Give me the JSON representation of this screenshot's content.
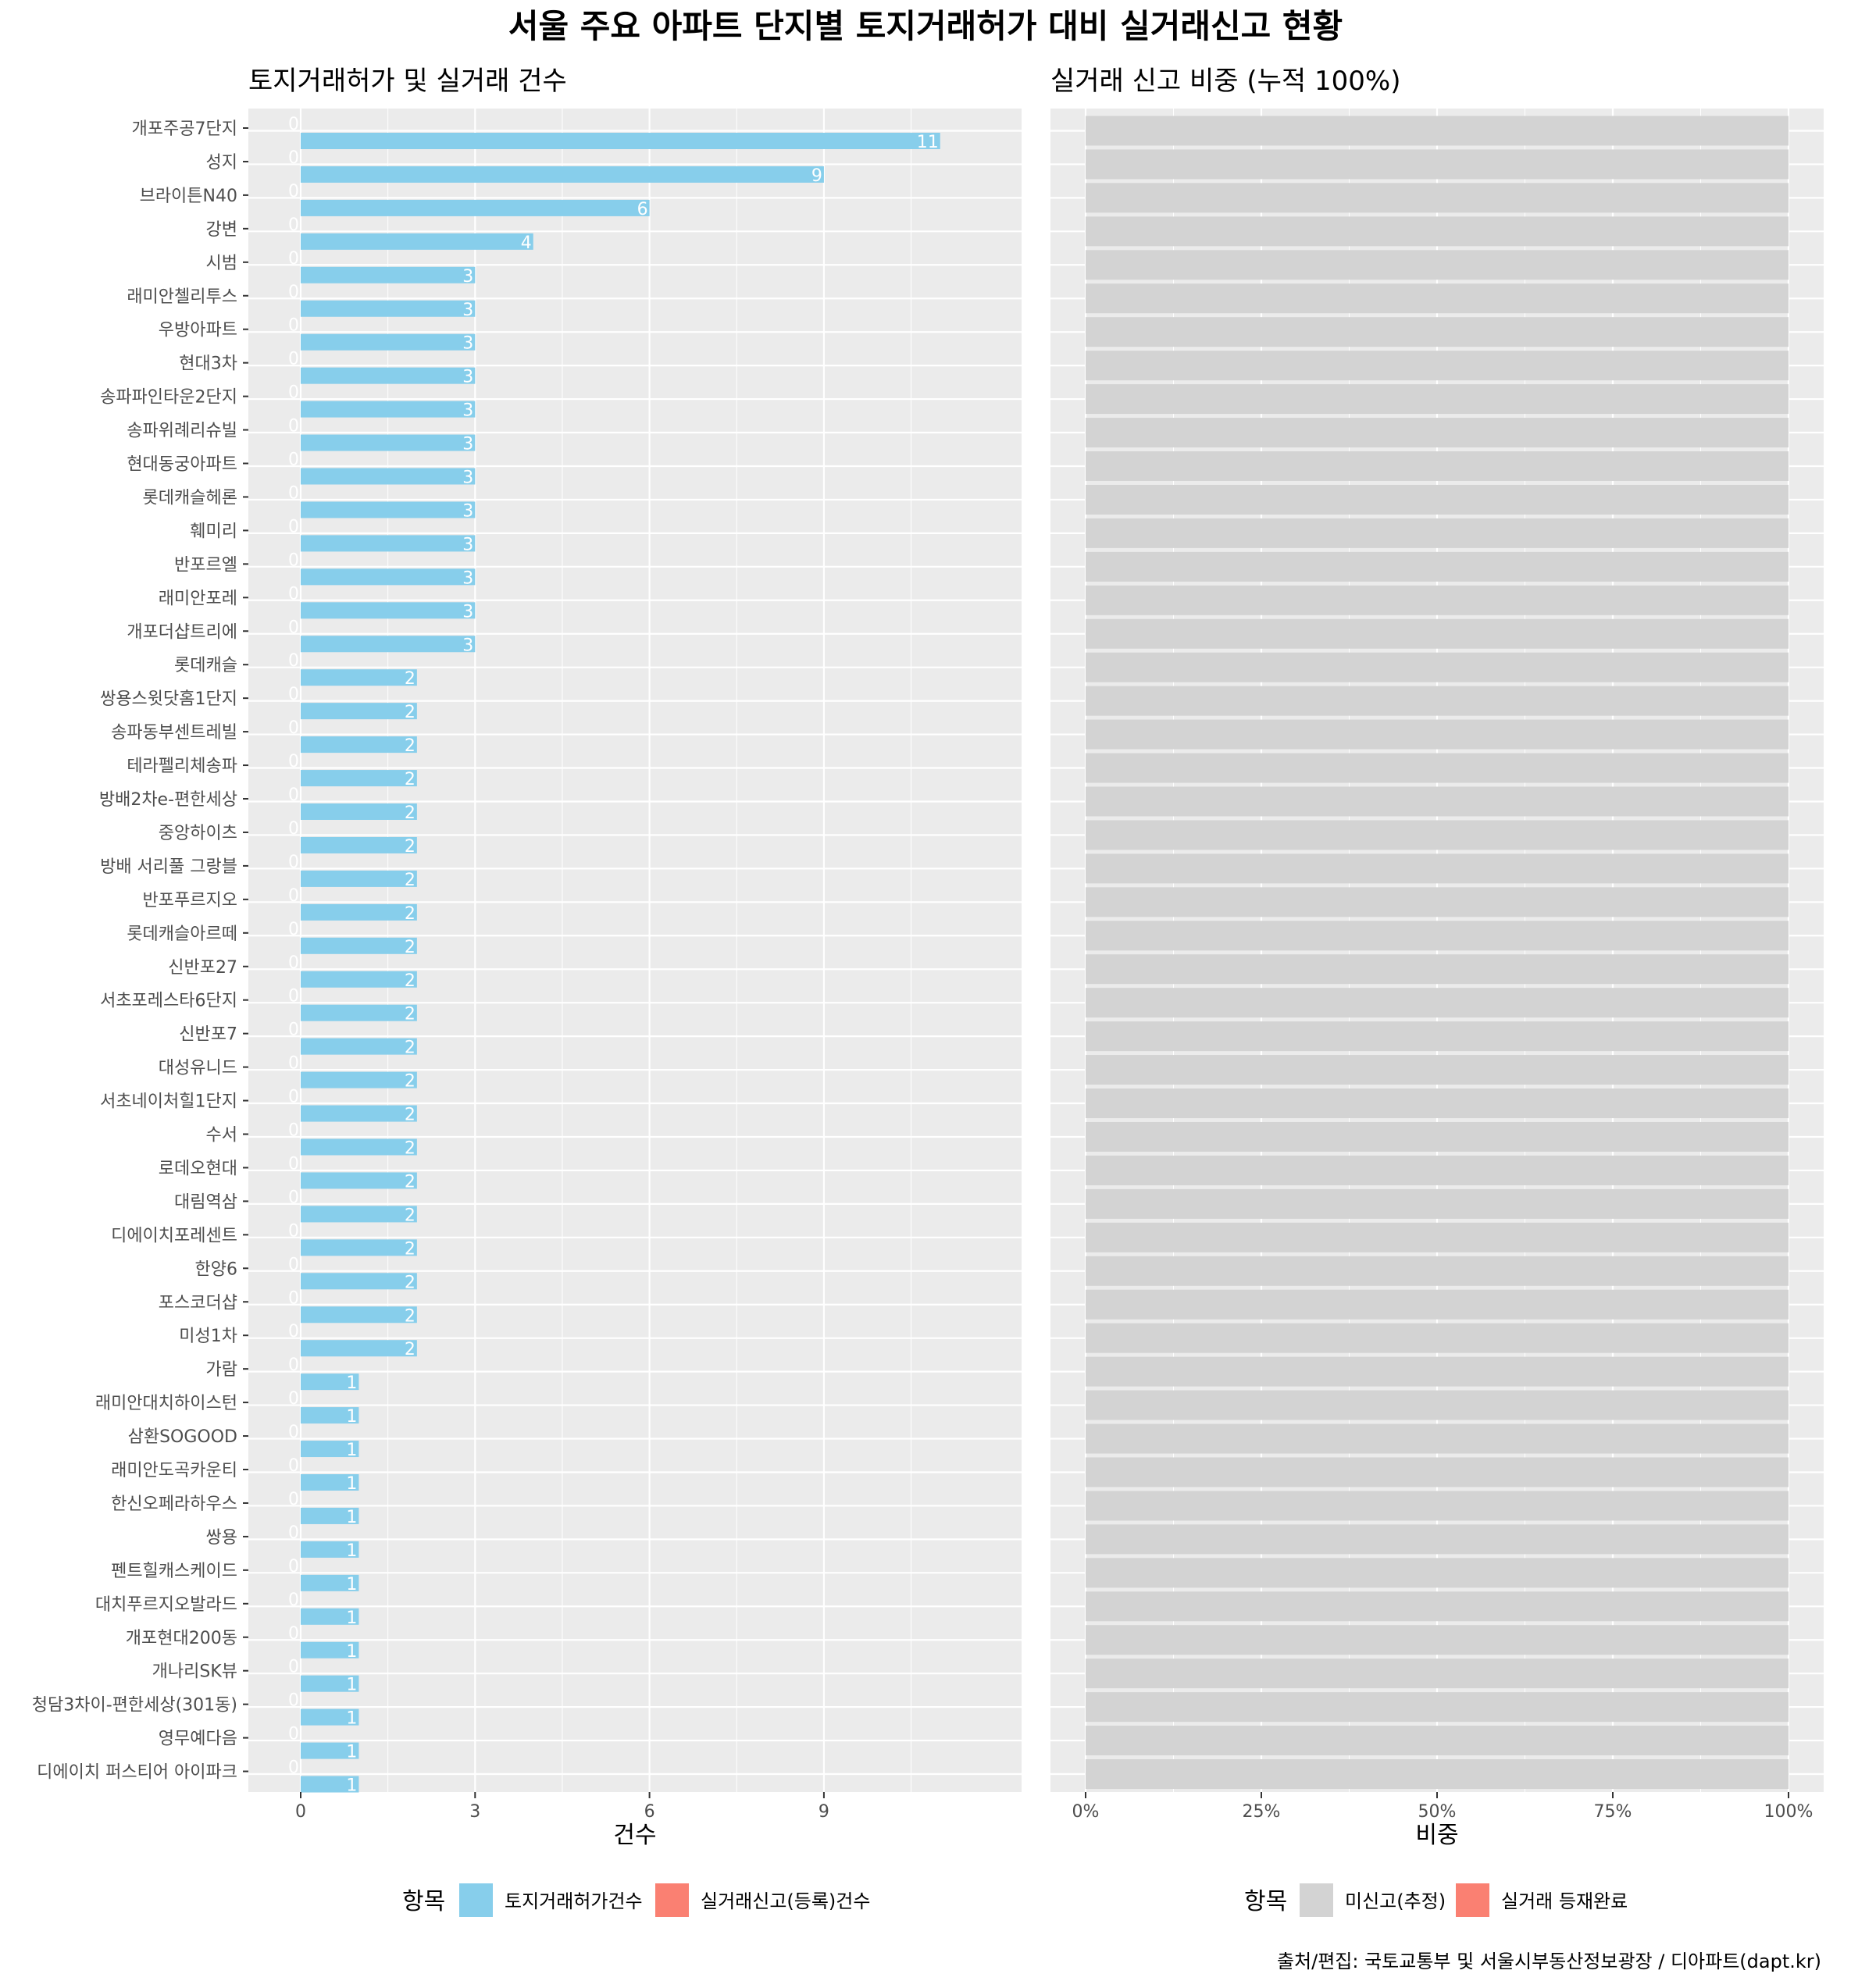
{
  "title": "서울 주요 아파트 단지별 토지거래허가 대비 실거래신고 현황",
  "caption": "출처/편집: 국토교통부 및 서울시부동산정보광장 / 디아파트(dapt.kr)",
  "colors": {
    "panel_bg": "#ebebeb",
    "grid": "#ffffff",
    "permit": "#87ceeb",
    "report": "#fa8072",
    "unreported": "#d3d3d3",
    "done": "#fa8072",
    "text": "#000000",
    "axis_text": "#4d4d4d",
    "label": "#ffffff"
  },
  "chart_data": [
    {
      "type": "bar",
      "orientation": "horizontal",
      "subtitle": "토지거래허가 및 실거래 건수",
      "xlabel": "건수",
      "ylabel": "",
      "xlim": [
        -0.9,
        12.4
      ],
      "xticks": [
        0,
        3,
        6,
        9
      ],
      "grid": true,
      "categories": [
        "개포주공7단지",
        "성지",
        "브라이튼N40",
        "강변",
        "시범",
        "래미안첼리투스",
        "우방아파트",
        "현대3차",
        "송파파인타운2단지",
        "송파위례리슈빌",
        "현대동궁아파트",
        "롯데캐슬헤론",
        "훼미리",
        "반포르엘",
        "래미안포레",
        "개포더샵트리에",
        "롯데캐슬",
        "쌍용스윗닷홈1단지",
        "송파동부센트레빌",
        "테라펠리체송파",
        "방배2차e-편한세상",
        "중앙하이츠",
        "방배 서리풀 그랑블",
        "반포푸르지오",
        "롯데캐슬아르떼",
        "신반포27",
        "서초포레스타6단지",
        "신반포7",
        "대성유니드",
        "서초네이처힐1단지",
        "수서",
        "로데오현대",
        "대림역삼",
        "디에이치포레센트",
        "한양6",
        "포스코더샵",
        "미성1차",
        "가람",
        "래미안대치하이스턴",
        "삼환SOGOOD",
        "래미안도곡카운티",
        "한신오페라하우스",
        "쌍용",
        "펜트힐캐스케이드",
        "대치푸르지오발라드",
        "개포현대200동",
        "개나리SK뷰",
        "청담3차이-편한세상(301동)",
        "영무예다음",
        "디에이치 퍼스티어 아이파크"
      ],
      "series": [
        {
          "name": "토지거래허가건수",
          "values": [
            11,
            9,
            6,
            4,
            3,
            3,
            3,
            3,
            3,
            3,
            3,
            3,
            3,
            3,
            3,
            3,
            2,
            2,
            2,
            2,
            2,
            2,
            2,
            2,
            2,
            2,
            2,
            2,
            2,
            2,
            2,
            2,
            2,
            2,
            2,
            2,
            2,
            1,
            1,
            1,
            1,
            1,
            1,
            1,
            1,
            1,
            1,
            1,
            1,
            1
          ]
        },
        {
          "name": "실거래신고(등록)건수",
          "values": [
            0,
            0,
            0,
            0,
            0,
            0,
            0,
            0,
            0,
            0,
            0,
            0,
            0,
            0,
            0,
            0,
            0,
            0,
            0,
            0,
            0,
            0,
            0,
            0,
            0,
            0,
            0,
            0,
            0,
            0,
            0,
            0,
            0,
            0,
            0,
            0,
            0,
            0,
            0,
            0,
            0,
            0,
            0,
            0,
            0,
            0,
            0,
            0,
            0,
            0
          ]
        }
      ],
      "legend": {
        "title": "항목",
        "position": "bottom",
        "items": [
          "토지거래허가건수",
          "실거래신고(등록)건수"
        ]
      }
    },
    {
      "type": "bar",
      "orientation": "horizontal",
      "stacked": "percent",
      "subtitle": "실거래 신고 비중 (누적 100%)",
      "xlabel": "비중",
      "ylabel": "",
      "xlim": [
        -0.05,
        1.05
      ],
      "xticks": [
        0,
        0.25,
        0.5,
        0.75,
        1
      ],
      "xtick_labels": [
        "0%",
        "25%",
        "50%",
        "75%",
        "100%"
      ],
      "grid": true,
      "series": [
        {
          "name": "미신고(추정)",
          "values": [
            1,
            1,
            1,
            1,
            1,
            1,
            1,
            1,
            1,
            1,
            1,
            1,
            1,
            1,
            1,
            1,
            1,
            1,
            1,
            1,
            1,
            1,
            1,
            1,
            1,
            1,
            1,
            1,
            1,
            1,
            1,
            1,
            1,
            1,
            1,
            1,
            1,
            1,
            1,
            1,
            1,
            1,
            1,
            1,
            1,
            1,
            1,
            1,
            1,
            1
          ]
        },
        {
          "name": "실거래 등재완료",
          "values": [
            0,
            0,
            0,
            0,
            0,
            0,
            0,
            0,
            0,
            0,
            0,
            0,
            0,
            0,
            0,
            0,
            0,
            0,
            0,
            0,
            0,
            0,
            0,
            0,
            0,
            0,
            0,
            0,
            0,
            0,
            0,
            0,
            0,
            0,
            0,
            0,
            0,
            0,
            0,
            0,
            0,
            0,
            0,
            0,
            0,
            0,
            0,
            0,
            0,
            0
          ]
        }
      ],
      "legend": {
        "title": "항목",
        "position": "bottom",
        "items": [
          "미신고(추정)",
          "실거래 등재완료"
        ]
      }
    }
  ]
}
